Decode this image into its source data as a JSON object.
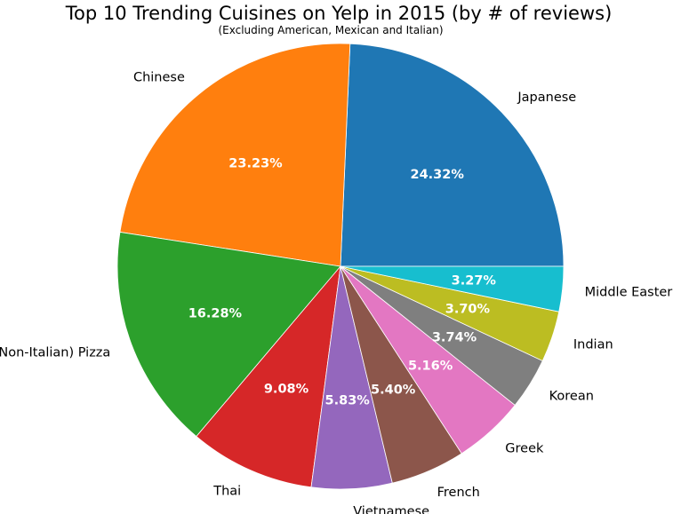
{
  "chart_data": {
    "type": "pie",
    "title": "Top 10 Trending Cuisines on Yelp in 2015 (by # of reviews)",
    "subtitle": "(Excluding American, Mexican and Italian)",
    "start_angle_deg": 0,
    "direction": "counterclockwise",
    "slices": [
      {
        "label": "Japanese",
        "value": 24.32,
        "pct_label": "24.32%",
        "color": "#1f77b4"
      },
      {
        "label": "Chinese",
        "value": 23.23,
        "pct_label": "23.23%",
        "color": "#ff7f0e"
      },
      {
        "label": "(Non-Italian) Pizza",
        "value": 16.28,
        "pct_label": "16.28%",
        "color": "#2ca02c"
      },
      {
        "label": "Thai",
        "value": 9.08,
        "pct_label": "9.08%",
        "color": "#d62728"
      },
      {
        "label": "Vietnamese",
        "value": 5.83,
        "pct_label": "5.83%",
        "color": "#9467bd"
      },
      {
        "label": "French",
        "value": 5.4,
        "pct_label": "5.40%",
        "color": "#8c564b"
      },
      {
        "label": "Greek",
        "value": 5.16,
        "pct_label": "5.16%",
        "color": "#e377c2"
      },
      {
        "label": "Korean",
        "value": 3.74,
        "pct_label": "3.74%",
        "color": "#7f7f7f"
      },
      {
        "label": "Indian",
        "value": 3.7,
        "pct_label": "3.70%",
        "color": "#bcbd22"
      },
      {
        "label": "Middle Eastern",
        "value": 3.27,
        "pct_label": "3.27%",
        "color": "#17becf"
      }
    ]
  }
}
